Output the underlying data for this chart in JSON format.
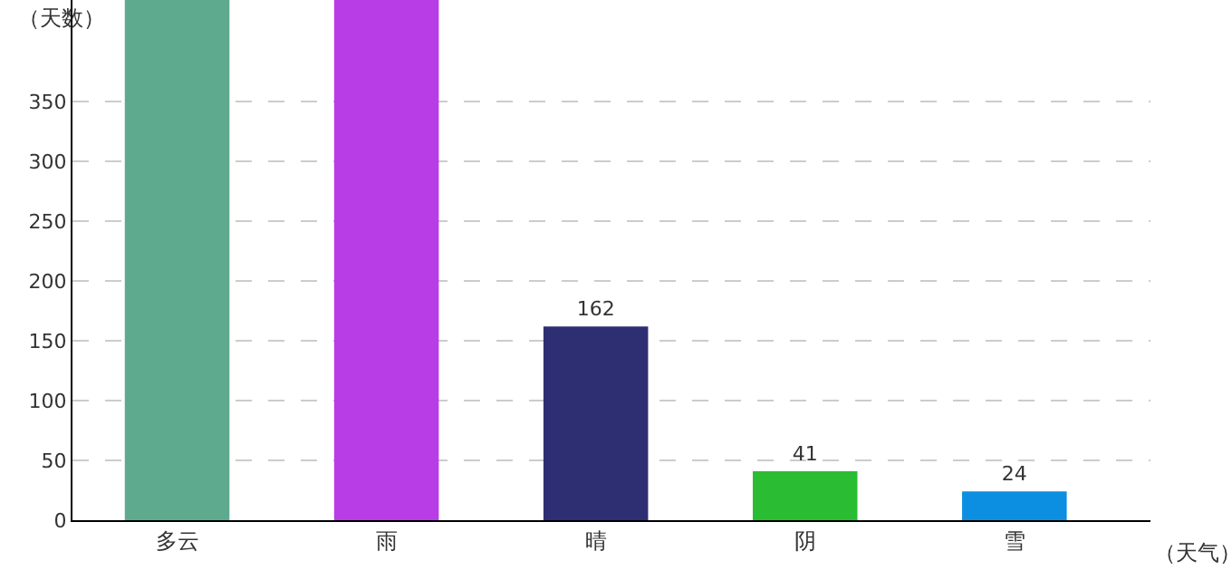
{
  "chart_data": {
    "type": "bar",
    "xlabel": "（天气）",
    "ylabel": "（天数）",
    "categories": [
      "多云",
      "雨",
      "晴",
      "阴",
      "雪"
    ],
    "values": [
      435,
      435,
      162,
      41,
      24
    ],
    "colors": [
      "#5eaa8f",
      "#b83de6",
      "#2e2e73",
      "#2abd34",
      "#0c8fe0"
    ],
    "value_labels": [
      null,
      null,
      "162",
      "41",
      "24"
    ],
    "ylim": [
      0,
      435
    ],
    "yticks": [
      0,
      50,
      100,
      150,
      200,
      250,
      300,
      350
    ],
    "grid": "y"
  }
}
